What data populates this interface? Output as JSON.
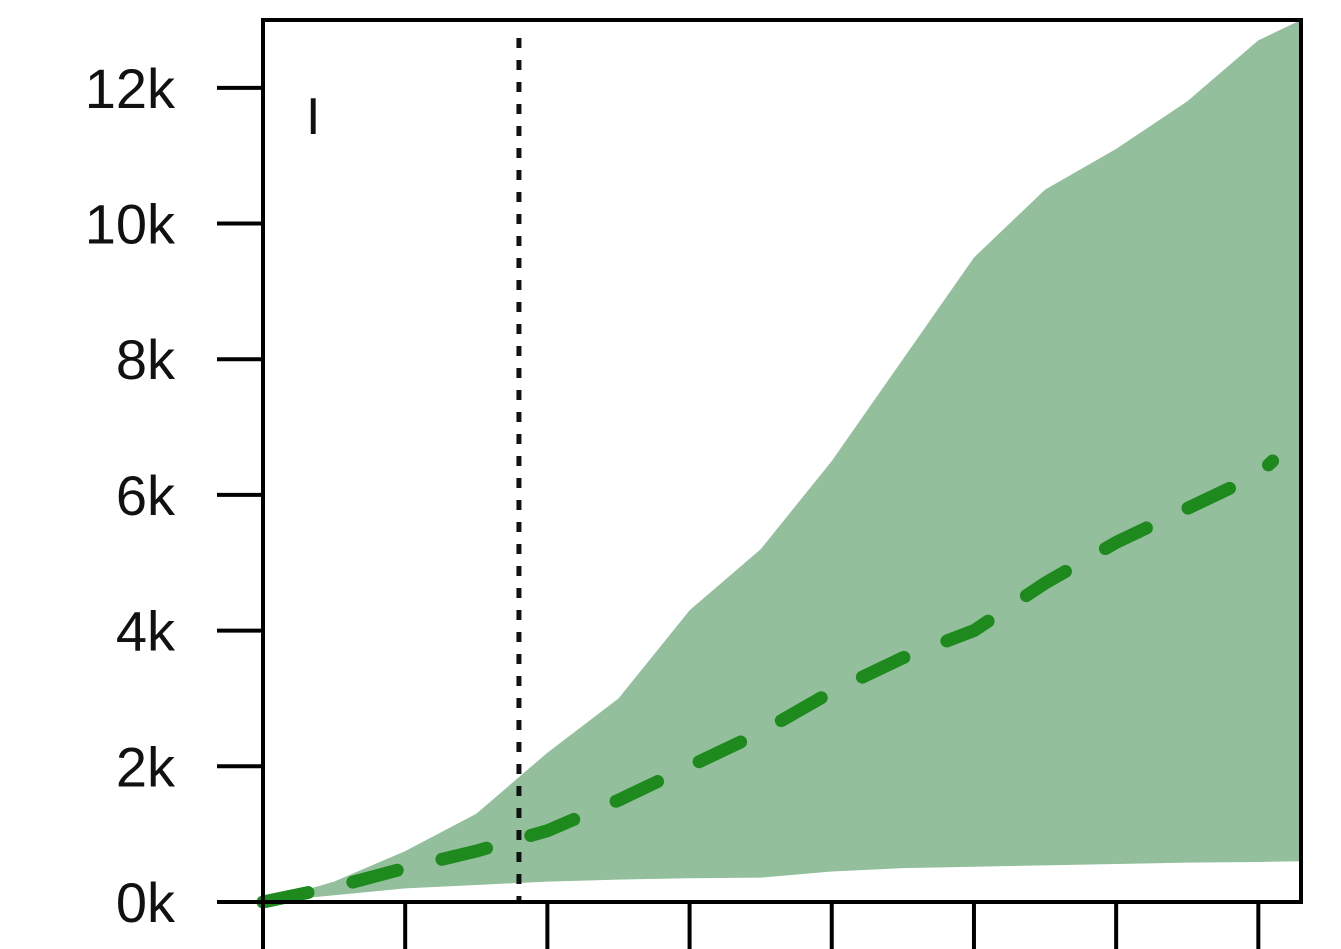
{
  "chart_data": {
    "type": "area",
    "title": "",
    "panel_label": "I",
    "xlabel": "",
    "ylabel": "",
    "xlim": [
      0,
      7.3
    ],
    "ylim": [
      0,
      13000
    ],
    "x_ticks": [
      0,
      1,
      2,
      3,
      4,
      5,
      6,
      7
    ],
    "y_ticks": [
      {
        "value": 0,
        "label": "0k"
      },
      {
        "value": 2000,
        "label": "2k"
      },
      {
        "value": 4000,
        "label": "4k"
      },
      {
        "value": 6000,
        "label": "6k"
      },
      {
        "value": 8000,
        "label": "8k"
      },
      {
        "value": 10000,
        "label": "10k"
      },
      {
        "value": 12000,
        "label": "12k"
      }
    ],
    "vline": {
      "x": 1.8,
      "style": "dotted"
    },
    "grid": false,
    "colors": {
      "band": "#93bf9c",
      "median": "#1e8a1e",
      "axis": "#000000"
    },
    "series": [
      {
        "style": "band",
        "x": [
          0.0,
          0.5,
          1.0,
          1.5,
          2.0,
          2.5,
          3.0,
          3.5,
          4.0,
          4.5,
          5.0,
          5.5,
          6.0,
          6.5,
          7.0,
          7.3
        ],
        "lower": [
          0,
          100,
          200,
          250,
          300,
          330,
          350,
          360,
          450,
          500,
          520,
          540,
          560,
          580,
          590,
          600
        ],
        "upper": [
          0,
          300,
          750,
          1300,
          2200,
          3000,
          4300,
          5200,
          6500,
          8000,
          9500,
          10500,
          11100,
          11800,
          12700,
          13000
        ]
      },
      {
        "style": "dashed",
        "x": [
          0.0,
          0.5,
          1.0,
          1.5,
          2.0,
          2.5,
          3.0,
          3.5,
          4.0,
          4.5,
          5.0,
          5.5,
          6.0,
          6.5,
          7.0,
          7.1
        ],
        "y": [
          0,
          220,
          500,
          750,
          1050,
          1500,
          2000,
          2500,
          3100,
          3600,
          4000,
          4700,
          5300,
          5800,
          6300,
          6500
        ]
      }
    ]
  }
}
